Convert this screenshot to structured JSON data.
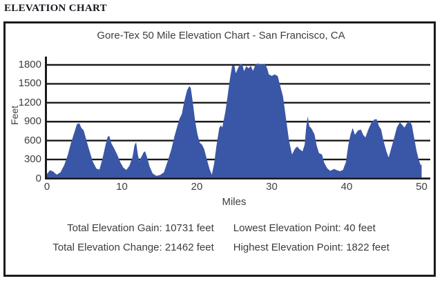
{
  "page": {
    "heading": "ELEVATION CHART"
  },
  "stats": {
    "total_gain": "Total Elevation Gain: 10731 feet",
    "total_change": "Total Elevation Change: 21462 feet",
    "lowest": "Lowest Elevation Point: 40 feet",
    "highest": "Highest Elevation Point: 1822 feet"
  },
  "chart_data": {
    "type": "area",
    "title": "Gore-Tex 50 Mile Elevation Chart - San Francisco, CA",
    "xlabel": "Miles",
    "ylabel": "Feet",
    "xlim": [
      0,
      50
    ],
    "ylim": [
      0,
      1950
    ],
    "x_ticks": [
      0,
      10,
      20,
      30,
      40,
      50
    ],
    "y_ticks": [
      0,
      300,
      600,
      900,
      1200,
      1500,
      1800
    ],
    "grid": true,
    "legend": "none",
    "fill_color": "#3a56a6",
    "axis_color": "#1a1a1a",
    "lowest_point_ft": 40,
    "highest_point_ft": 1822,
    "total_gain_ft": 10731,
    "total_change_ft": 21462,
    "points": [
      [
        0,
        70
      ],
      [
        0.4,
        130
      ],
      [
        0.8,
        110
      ],
      [
        1.3,
        60
      ],
      [
        1.8,
        95
      ],
      [
        2.3,
        210
      ],
      [
        2.8,
        380
      ],
      [
        3.2,
        560
      ],
      [
        3.6,
        710
      ],
      [
        4.0,
        860
      ],
      [
        4.3,
        875
      ],
      [
        4.6,
        800
      ],
      [
        4.9,
        760
      ],
      [
        5.3,
        590
      ],
      [
        5.7,
        430
      ],
      [
        6.1,
        270
      ],
      [
        6.6,
        155
      ],
      [
        7.0,
        140
      ],
      [
        7.4,
        310
      ],
      [
        7.8,
        520
      ],
      [
        8.1,
        660
      ],
      [
        8.3,
        675
      ],
      [
        8.6,
        555
      ],
      [
        9.0,
        470
      ],
      [
        9.4,
        370
      ],
      [
        9.8,
        255
      ],
      [
        10.2,
        170
      ],
      [
        10.6,
        135
      ],
      [
        11.0,
        200
      ],
      [
        11.4,
        330
      ],
      [
        11.7,
        530
      ],
      [
        11.9,
        575
      ],
      [
        12.1,
        400
      ],
      [
        12.3,
        275
      ],
      [
        12.6,
        340
      ],
      [
        12.9,
        415
      ],
      [
        13.1,
        430
      ],
      [
        13.4,
        320
      ],
      [
        13.7,
        190
      ],
      [
        14.1,
        80
      ],
      [
        14.6,
        40
      ],
      [
        15.1,
        55
      ],
      [
        15.6,
        95
      ],
      [
        16.1,
        270
      ],
      [
        16.6,
        460
      ],
      [
        17.0,
        660
      ],
      [
        17.4,
        830
      ],
      [
        17.7,
        950
      ],
      [
        18.0,
        1020
      ],
      [
        18.3,
        1210
      ],
      [
        18.7,
        1400
      ],
      [
        19.0,
        1465
      ],
      [
        19.2,
        1430
      ],
      [
        19.5,
        1170
      ],
      [
        19.8,
        890
      ],
      [
        20.1,
        690
      ],
      [
        20.4,
        565
      ],
      [
        20.7,
        535
      ],
      [
        21.0,
        460
      ],
      [
        21.3,
        320
      ],
      [
        21.7,
        150
      ],
      [
        22.0,
        60
      ],
      [
        22.3,
        230
      ],
      [
        22.6,
        500
      ],
      [
        23.0,
        800
      ],
      [
        23.2,
        840
      ],
      [
        23.4,
        810
      ],
      [
        23.8,
        1050
      ],
      [
        24.1,
        1300
      ],
      [
        24.4,
        1560
      ],
      [
        24.7,
        1780
      ],
      [
        25.0,
        1795
      ],
      [
        25.2,
        1665
      ],
      [
        25.5,
        1750
      ],
      [
        25.8,
        1820
      ],
      [
        26.1,
        1795
      ],
      [
        26.3,
        1700
      ],
      [
        26.6,
        1780
      ],
      [
        26.9,
        1745
      ],
      [
        27.2,
        1785
      ],
      [
        27.5,
        1705
      ],
      [
        27.8,
        1800
      ],
      [
        28.1,
        1822
      ],
      [
        28.5,
        1810
      ],
      [
        28.9,
        1805
      ],
      [
        29.1,
        1820
      ],
      [
        29.4,
        1740
      ],
      [
        29.6,
        1650
      ],
      [
        30.0,
        1625
      ],
      [
        30.4,
        1650
      ],
      [
        30.8,
        1620
      ],
      [
        31.1,
        1480
      ],
      [
        31.5,
        1300
      ],
      [
        31.9,
        950
      ],
      [
        32.3,
        600
      ],
      [
        32.7,
        380
      ],
      [
        33.1,
        470
      ],
      [
        33.4,
        505
      ],
      [
        33.7,
        465
      ],
      [
        34.1,
        430
      ],
      [
        34.4,
        540
      ],
      [
        34.6,
        820
      ],
      [
        34.8,
        985
      ],
      [
        35.0,
        830
      ],
      [
        35.3,
        790
      ],
      [
        35.7,
        700
      ],
      [
        36.0,
        520
      ],
      [
        36.3,
        400
      ],
      [
        36.7,
        380
      ],
      [
        37.0,
        250
      ],
      [
        37.4,
        160
      ],
      [
        37.8,
        120
      ],
      [
        38.3,
        150
      ],
      [
        38.7,
        130
      ],
      [
        39.1,
        115
      ],
      [
        39.5,
        135
      ],
      [
        39.9,
        260
      ],
      [
        40.2,
        520
      ],
      [
        40.5,
        690
      ],
      [
        40.8,
        800
      ],
      [
        41.1,
        690
      ],
      [
        41.5,
        760
      ],
      [
        41.9,
        775
      ],
      [
        42.2,
        690
      ],
      [
        42.5,
        650
      ],
      [
        42.9,
        780
      ],
      [
        43.3,
        885
      ],
      [
        43.7,
        935
      ],
      [
        44.0,
        940
      ],
      [
        44.3,
        830
      ],
      [
        44.6,
        775
      ],
      [
        44.9,
        600
      ],
      [
        45.3,
        430
      ],
      [
        45.6,
        330
      ],
      [
        45.9,
        460
      ],
      [
        46.3,
        630
      ],
      [
        46.7,
        810
      ],
      [
        47.1,
        890
      ],
      [
        47.4,
        850
      ],
      [
        47.7,
        805
      ],
      [
        48.1,
        885
      ],
      [
        48.4,
        910
      ],
      [
        48.7,
        845
      ],
      [
        49.0,
        650
      ],
      [
        49.3,
        450
      ],
      [
        49.6,
        300
      ],
      [
        49.9,
        205
      ],
      [
        50.0,
        230
      ]
    ]
  }
}
